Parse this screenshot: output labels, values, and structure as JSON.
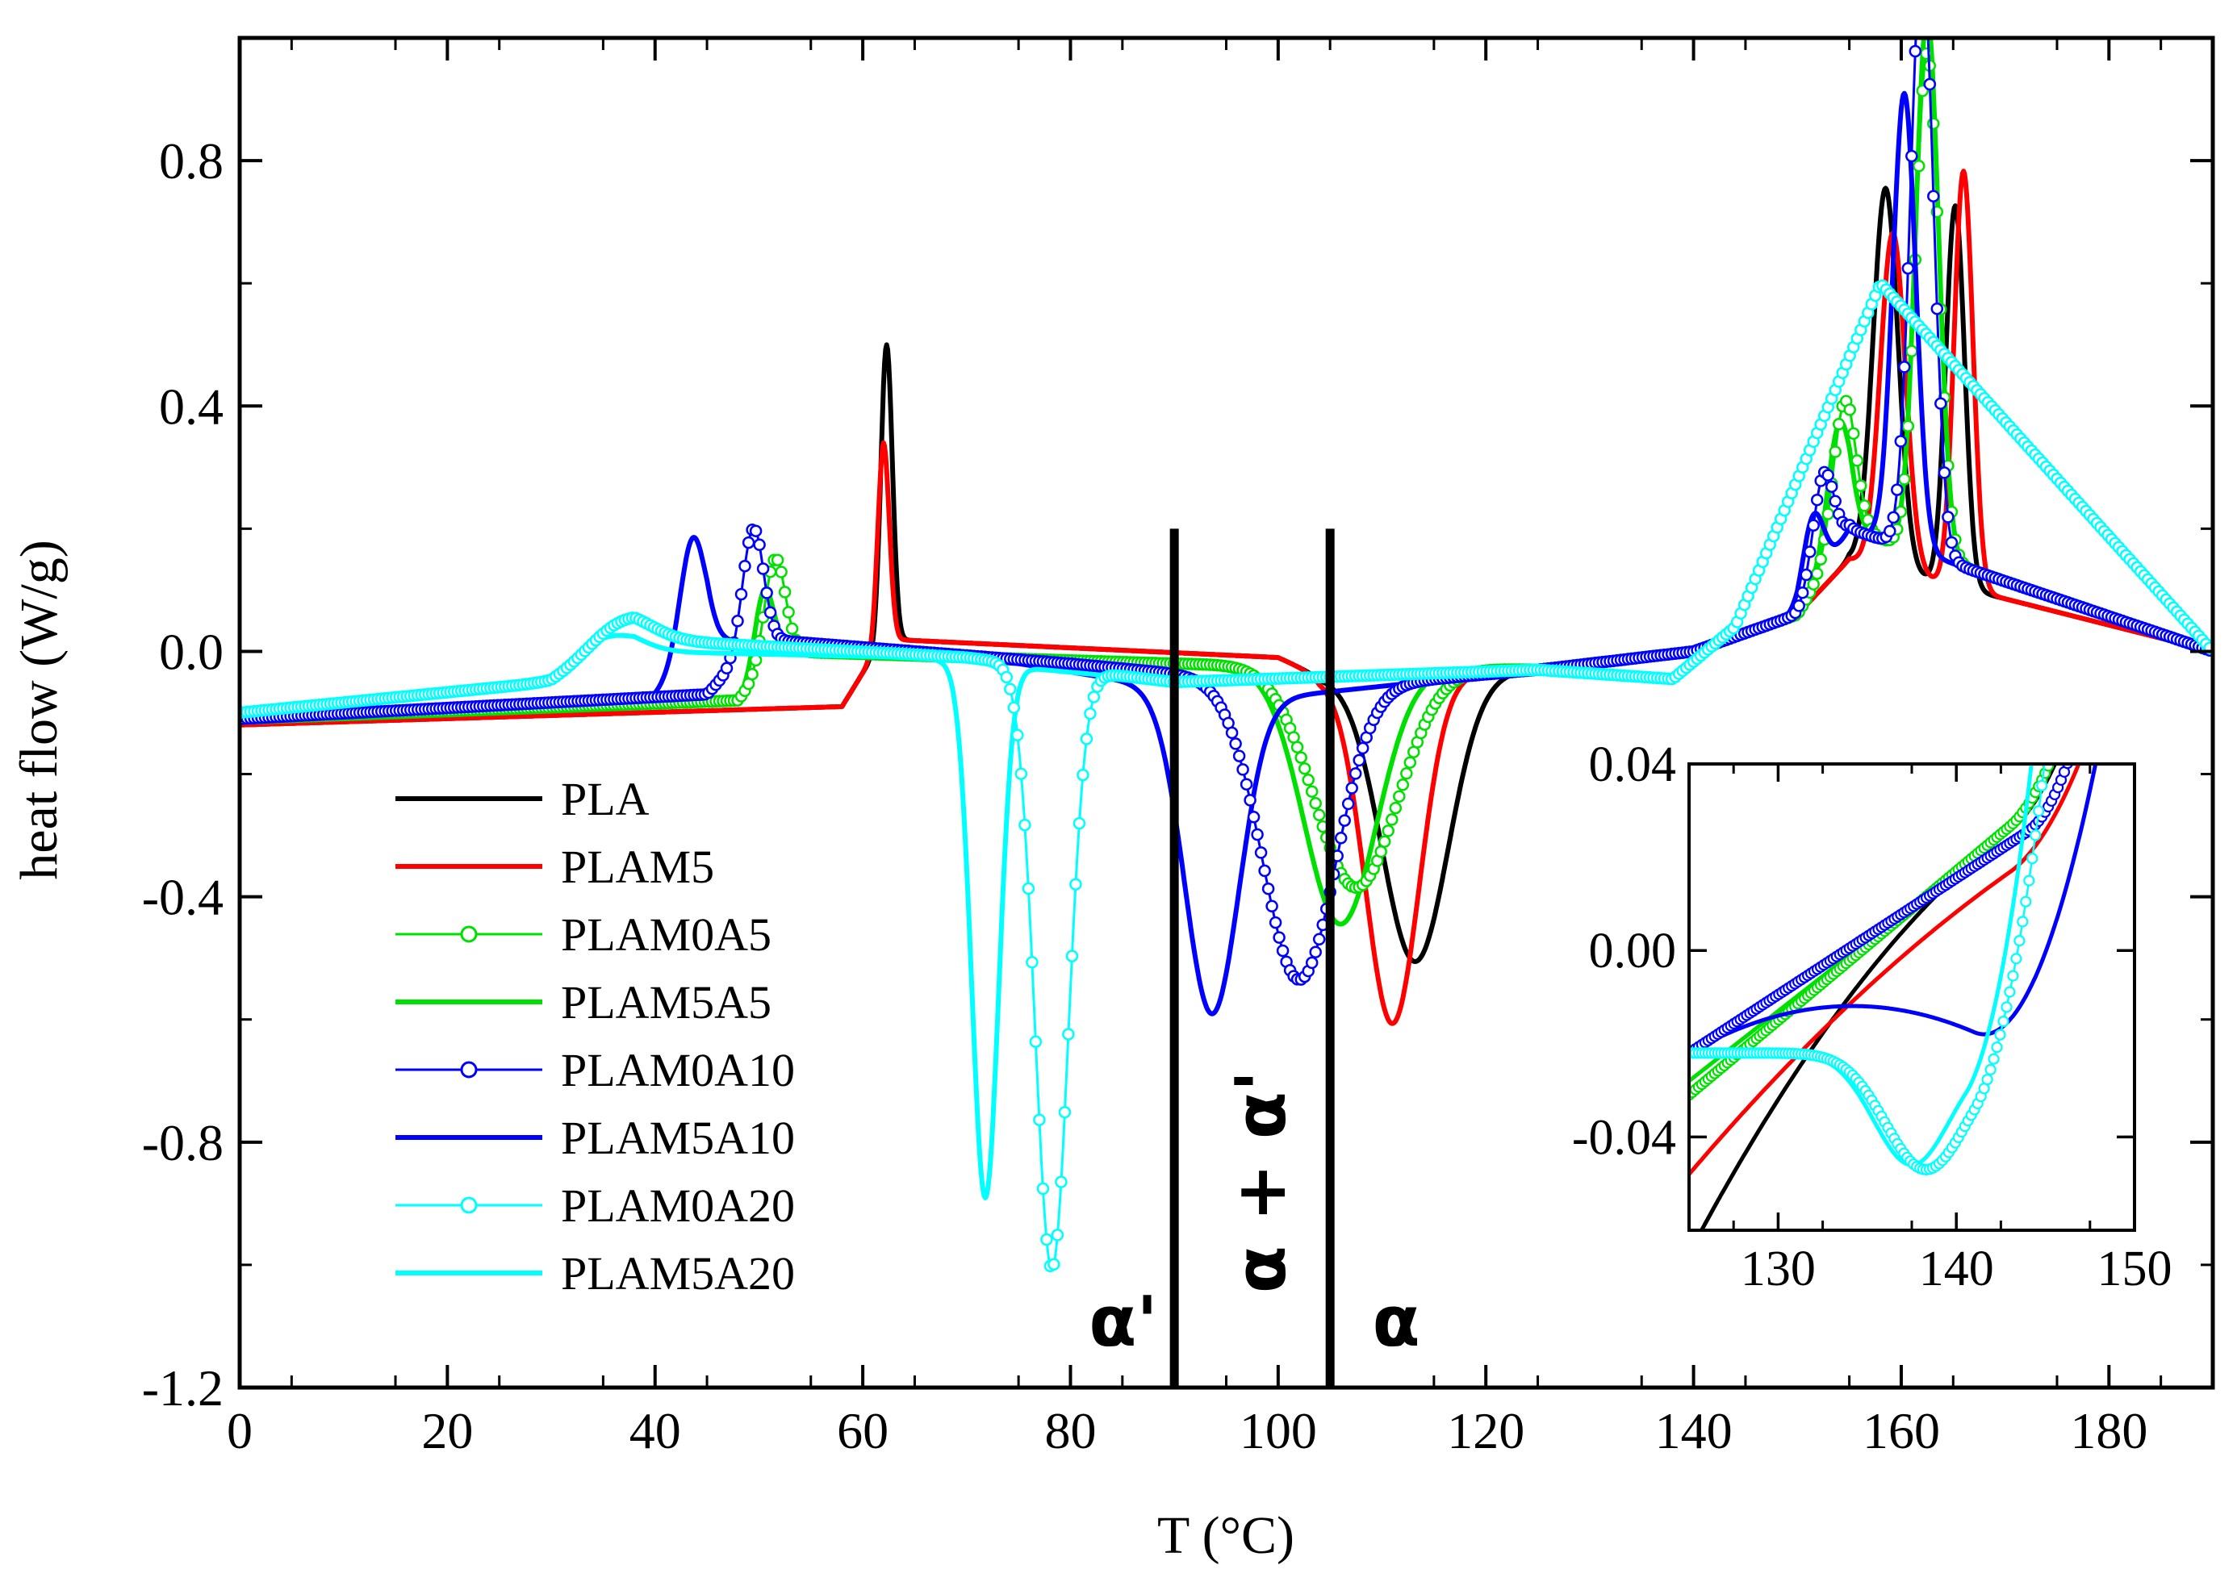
{
  "chart_data": {
    "type": "line",
    "xlabel": "T (°C)",
    "ylabel": "heat flow (W/g)",
    "xlim": [
      0,
      190
    ],
    "ylim": [
      -1.2,
      1.0
    ],
    "xticks": [
      0,
      20,
      40,
      60,
      80,
      100,
      120,
      140,
      160,
      180
    ],
    "xtick_labels": [
      "0",
      "20",
      "40",
      "60",
      "80",
      "100",
      "120",
      "140",
      "160",
      "180"
    ],
    "yticks": [
      -1.2,
      -0.8,
      -0.4,
      0.0,
      0.4,
      0.8
    ],
    "ytick_labels": [
      "-1.2",
      "-0.8",
      "-0.4",
      "0.0",
      "0.4",
      "0.8"
    ],
    "legend_position": "lower-left",
    "series": [
      {
        "name": "PLA",
        "color": "#000000",
        "marker": "none",
        "baseline": [
          [
            0,
            -0.12
          ],
          [
            58,
            -0.09
          ],
          [
            62,
            0.02
          ],
          [
            100,
            -0.01
          ],
          [
            104,
            -0.04
          ],
          [
            125,
            -0.03
          ],
          [
            140,
            0.0
          ],
          [
            150,
            0.06
          ],
          [
            155,
            0.15
          ],
          [
            190,
            0.0
          ]
        ],
        "peaks": [
          {
            "x": 62.3,
            "h": 0.48,
            "w": 0.55
          },
          {
            "x": 113.2,
            "h": -0.47,
            "w": 3.2
          },
          {
            "x": 158.5,
            "h": 0.62,
            "w": 1.2
          },
          {
            "x": 165.2,
            "h": 0.62,
            "w": 0.9
          }
        ]
      },
      {
        "name": "PLAM5",
        "color": "#ff0000",
        "marker": "none",
        "baseline": [
          [
            0,
            -0.12
          ],
          [
            58,
            -0.09
          ],
          [
            62,
            0.02
          ],
          [
            100,
            -0.01
          ],
          [
            104,
            -0.04
          ],
          [
            125,
            -0.03
          ],
          [
            140,
            0.0
          ],
          [
            150,
            0.06
          ],
          [
            155,
            0.15
          ],
          [
            190,
            0.0
          ]
        ],
        "peaks": [
          {
            "x": 62.0,
            "h": 0.32,
            "w": 0.55
          },
          {
            "x": 111.0,
            "h": -0.57,
            "w": 2.6
          },
          {
            "x": 159.2,
            "h": 0.55,
            "w": 1.2
          },
          {
            "x": 166.0,
            "h": 0.68,
            "w": 0.9
          }
        ]
      },
      {
        "name": "PLAM0A5",
        "color": "#00e000",
        "marker": "circle",
        "baseline": [
          [
            0,
            -0.11
          ],
          [
            48,
            -0.08
          ],
          [
            52,
            0.0
          ],
          [
            90,
            -0.02
          ],
          [
            125,
            -0.03
          ],
          [
            140,
            0.0
          ],
          [
            150,
            0.06
          ],
          [
            155,
            0.2
          ],
          [
            190,
            0.0
          ]
        ],
        "peaks": [
          {
            "x": 51.5,
            "h": 0.16,
            "w": 1.0
          },
          {
            "x": 107.5,
            "h": -0.36,
            "w": 4.0
          },
          {
            "x": 154.5,
            "h": 0.22,
            "w": 1.1
          },
          {
            "x": 162.5,
            "h": 0.82,
            "w": 1.1
          }
        ]
      },
      {
        "name": "PLAM5A5",
        "color": "#00e000",
        "marker": "none",
        "baseline": [
          [
            0,
            -0.11
          ],
          [
            48,
            -0.08
          ],
          [
            52,
            0.0
          ],
          [
            90,
            -0.02
          ],
          [
            125,
            -0.03
          ],
          [
            140,
            0.0
          ],
          [
            150,
            0.06
          ],
          [
            155,
            0.2
          ],
          [
            190,
            0.0
          ]
        ],
        "peaks": [
          {
            "x": 50.5,
            "h": 0.13,
            "w": 0.9
          },
          {
            "x": 106.0,
            "h": -0.42,
            "w": 3.5
          },
          {
            "x": 154.0,
            "h": 0.2,
            "w": 1.1
          },
          {
            "x": 162.5,
            "h": 0.88,
            "w": 1.1
          }
        ]
      },
      {
        "name": "PLAM0A10",
        "color": "#0000ff",
        "marker": "circle",
        "baseline": [
          [
            0,
            -0.11
          ],
          [
            45,
            -0.07
          ],
          [
            50,
            0.02
          ],
          [
            80,
            -0.02
          ],
          [
            105,
            -0.06
          ],
          [
            125,
            -0.03
          ],
          [
            140,
            0.0
          ],
          [
            150,
            0.06
          ],
          [
            155,
            0.2
          ],
          [
            190,
            0.0
          ]
        ],
        "peaks": [
          {
            "x": 49.4,
            "h": 0.19,
            "w": 1.0
          },
          {
            "x": 102.0,
            "h": -0.48,
            "w": 3.5
          },
          {
            "x": 152.5,
            "h": 0.16,
            "w": 1.0
          },
          {
            "x": 162.0,
            "h": 0.97,
            "w": 1.1
          }
        ]
      },
      {
        "name": "PLAM5A10",
        "color": "#0000ff",
        "marker": "none",
        "baseline": [
          [
            0,
            -0.11
          ],
          [
            40,
            -0.07
          ],
          [
            45,
            0.02
          ],
          [
            75,
            -0.02
          ],
          [
            97,
            -0.08
          ],
          [
            125,
            -0.03
          ],
          [
            140,
            0.0
          ],
          [
            150,
            0.06
          ],
          [
            155,
            0.2
          ],
          [
            190,
            0.0
          ]
        ],
        "peaks": [
          {
            "x": 43.6,
            "h": 0.19,
            "w": 1.2
          },
          {
            "x": 93.6,
            "h": -0.52,
            "w": 2.6
          },
          {
            "x": 151.5,
            "h": 0.12,
            "w": 1.0
          },
          {
            "x": 160.3,
            "h": 0.74,
            "w": 1.1
          }
        ]
      },
      {
        "name": "PLAM0A20",
        "color": "#00ffff",
        "marker": "circle",
        "baseline": [
          [
            0,
            -0.1
          ],
          [
            30,
            -0.05
          ],
          [
            38,
            0.02
          ],
          [
            70,
            -0.01
          ],
          [
            90,
            -0.05
          ],
          [
            125,
            -0.03
          ],
          [
            138,
            -0.045
          ],
          [
            144,
            0.04
          ],
          [
            158,
            0.6
          ],
          [
            190,
            0.0
          ]
        ],
        "peaks": [
          {
            "x": 36.5,
            "h": 0.04,
            "w": 3.0
          },
          {
            "x": 78.2,
            "h": -0.98,
            "w": 1.6
          }
        ]
      },
      {
        "name": "PLAM5A20",
        "color": "#00ffff",
        "marker": "none",
        "baseline": [
          [
            0,
            -0.1
          ],
          [
            30,
            -0.05
          ],
          [
            38,
            0.0
          ],
          [
            65,
            -0.01
          ],
          [
            90,
            -0.05
          ],
          [
            125,
            -0.03
          ],
          [
            138,
            -0.04
          ],
          [
            144,
            0.04
          ],
          [
            158,
            0.6
          ],
          [
            190,
            0.0
          ]
        ],
        "peaks": [
          {
            "x": 35.0,
            "h": 0.04,
            "w": 3.0
          },
          {
            "x": 71.8,
            "h": -0.87,
            "w": 1.3
          }
        ]
      }
    ],
    "annotations": {
      "lines": [
        {
          "x": 90,
          "y_from": -1.2,
          "y_to": 0.2
        },
        {
          "x": 105,
          "y_from": -1.2,
          "y_to": 0.2
        }
      ],
      "labels": [
        "α'",
        "α + α'",
        "α"
      ]
    },
    "inset": {
      "xlim": [
        125,
        150
      ],
      "ylim": [
        -0.06,
        0.04
      ],
      "xticks": [
        130,
        140,
        150
      ],
      "xtick_labels": [
        "130",
        "140",
        "150"
      ],
      "yticks": [
        -0.04,
        0.0,
        0.04
      ],
      "ytick_labels": [
        "-0.04",
        "0.00",
        "0.04"
      ]
    }
  }
}
